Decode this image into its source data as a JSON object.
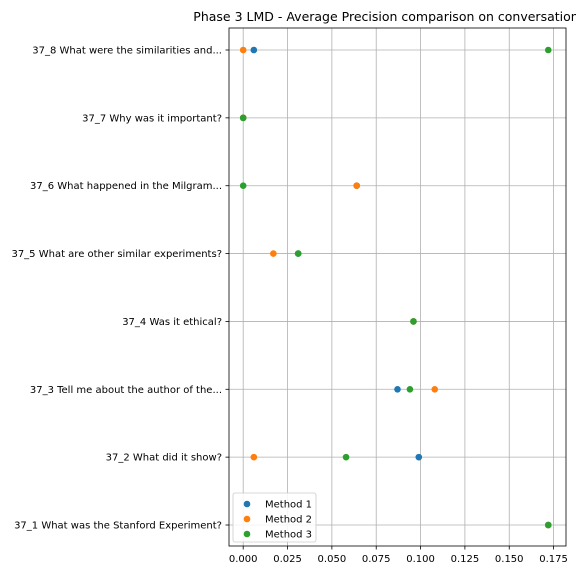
{
  "chart_data": {
    "type": "scatter",
    "title": "Phase 3 LMD - Average Precision comparison on conversation",
    "xlabel": "",
    "ylabel": "",
    "categories": [
      "37_1 What was the Stanford Experiment?",
      "37_2 What did it show?",
      "37_3 Tell me about the author of the...",
      "37_4 Was it ethical?",
      "37_5 What are other similar experiments?",
      "37_6 What happened in the Milgram...",
      "37_7 Why was it important?",
      "37_8 What were the similarities and..."
    ],
    "xlim": [
      -0.008,
      0.182
    ],
    "xticks": [
      0.0,
      0.025,
      0.05,
      0.075,
      0.1,
      0.125,
      0.15,
      0.175
    ],
    "xtick_labels": [
      "0.000",
      "0.025",
      "0.050",
      "0.075",
      "0.100",
      "0.125",
      "0.150",
      "0.175"
    ],
    "grid": true,
    "legend_position": "lower-left",
    "series": [
      {
        "name": "Method 1",
        "color": "#1f77b4",
        "values": [
          0.172,
          0.099,
          0.087,
          0.096,
          0.031,
          0.064,
          0.0,
          0.006
        ]
      },
      {
        "name": "Method 2",
        "color": "#ff7f0e",
        "values": [
          0.172,
          0.006,
          0.108,
          0.096,
          0.017,
          0.064,
          0.0,
          0.0
        ]
      },
      {
        "name": "Method 3",
        "color": "#2ca02c",
        "values": [
          0.172,
          0.058,
          0.094,
          0.096,
          0.031,
          0.0,
          0.0,
          0.172
        ]
      }
    ]
  }
}
